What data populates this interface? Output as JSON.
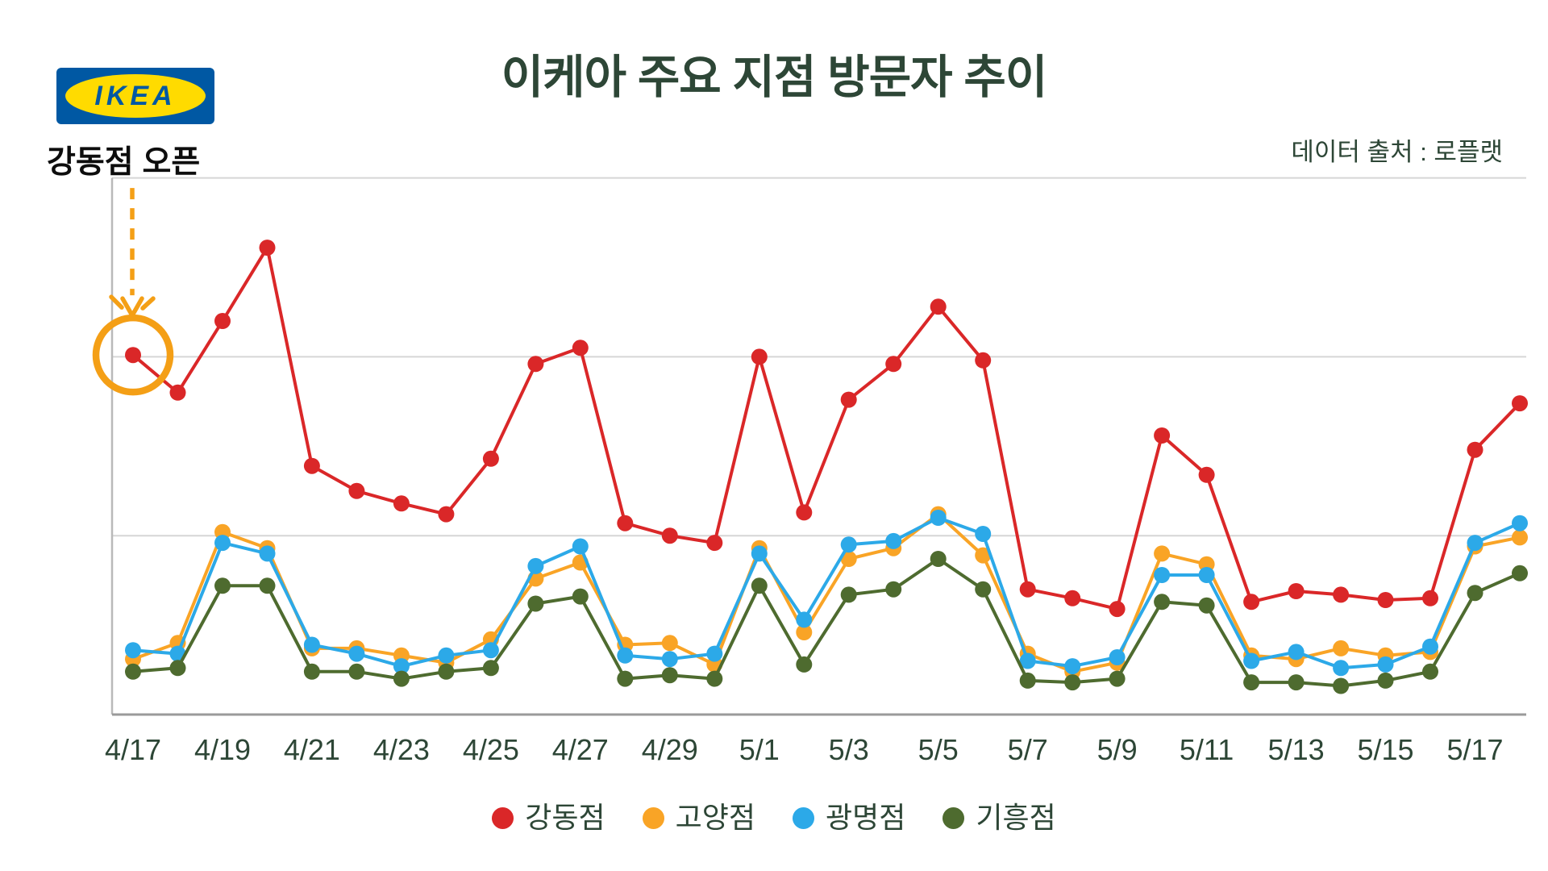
{
  "page": {
    "title": "이케아 주요 지점 방문자 추이",
    "source_note": "데이터 출처 : 로플랫",
    "logo_text": "IKEA",
    "annotation_label": "강동점 오픈"
  },
  "colors": {
    "background": "#ffffff",
    "title_text": "#2d4636",
    "axis_text": "#2d4636",
    "annotation": "#f49f16",
    "gridline": "#d6d6d6",
    "left_spine": "#b9b9b9",
    "bottom_axis": "#9a9a9a",
    "logo_blue": "#0058a3",
    "logo_yellow": "#ffdb00"
  },
  "chart_data": {
    "type": "line",
    "title": "이케아 주요 지점 방문자 추이",
    "source": "데이터 출처 : 로플랫",
    "x": [
      "4/17",
      "4/18",
      "4/19",
      "4/20",
      "4/21",
      "4/22",
      "4/23",
      "4/24",
      "4/25",
      "4/26",
      "4/27",
      "4/28",
      "4/29",
      "4/30",
      "5/1",
      "5/2",
      "5/3",
      "5/4",
      "5/5",
      "5/6",
      "5/7",
      "5/8",
      "5/9",
      "5/10",
      "5/11",
      "5/12",
      "5/13",
      "5/14",
      "5/15",
      "5/16",
      "5/17",
      "5/18"
    ],
    "x_tick_labels": [
      "4/17",
      "4/19",
      "4/21",
      "4/23",
      "4/25",
      "4/27",
      "4/29",
      "5/1",
      "5/3",
      "5/5",
      "5/7",
      "5/9",
      "5/11",
      "5/13",
      "5/15",
      "5/17"
    ],
    "y_axis": {
      "tick_labels_visible": false,
      "unit": "visitors (axis unlabeled; values expressed in gridline units, 1.0 = one gridline)",
      "gridline_values": [
        1,
        2,
        3
      ],
      "ylim": [
        0,
        3.05
      ]
    },
    "grid": "horizontal only",
    "legend_position": "bottom",
    "series": [
      {
        "name": "강동점",
        "color": "#da2728",
        "values": [
          2.01,
          1.8,
          2.2,
          2.61,
          1.39,
          1.25,
          1.18,
          1.12,
          1.43,
          1.96,
          2.05,
          1.07,
          1.0,
          0.96,
          2.0,
          1.13,
          1.76,
          1.96,
          2.28,
          1.98,
          0.7,
          0.65,
          0.59,
          1.56,
          1.34,
          0.63,
          0.69,
          0.67,
          0.64,
          0.65,
          1.48,
          1.74
        ]
      },
      {
        "name": "고양점",
        "color": "#f9a426",
        "values": [
          0.31,
          0.4,
          1.02,
          0.93,
          0.37,
          0.37,
          0.33,
          0.29,
          0.42,
          0.76,
          0.85,
          0.39,
          0.4,
          0.28,
          0.93,
          0.46,
          0.87,
          0.93,
          1.12,
          0.89,
          0.34,
          0.24,
          0.29,
          0.9,
          0.84,
          0.33,
          0.31,
          0.37,
          0.33,
          0.35,
          0.94,
          0.99
        ]
      },
      {
        "name": "광명점",
        "color": "#2ca9e8",
        "values": [
          0.36,
          0.34,
          0.96,
          0.9,
          0.39,
          0.34,
          0.27,
          0.33,
          0.36,
          0.83,
          0.94,
          0.33,
          0.31,
          0.34,
          0.9,
          0.53,
          0.95,
          0.97,
          1.1,
          1.01,
          0.3,
          0.27,
          0.32,
          0.78,
          0.78,
          0.3,
          0.35,
          0.26,
          0.28,
          0.38,
          0.96,
          1.07
        ]
      },
      {
        "name": "기흥점",
        "color": "#4e6b2f",
        "values": [
          0.24,
          0.26,
          0.72,
          0.72,
          0.24,
          0.24,
          0.2,
          0.24,
          0.26,
          0.62,
          0.66,
          0.2,
          0.22,
          0.2,
          0.72,
          0.28,
          0.67,
          0.7,
          0.87,
          0.7,
          0.19,
          0.18,
          0.2,
          0.63,
          0.61,
          0.18,
          0.18,
          0.16,
          0.19,
          0.24,
          0.68,
          0.79
        ]
      }
    ],
    "annotation": {
      "label": "강동점 오픈",
      "target": {
        "x": "4/17",
        "series": "강동점"
      },
      "style": "orange circle around point with dashed arrow pointing down from label"
    }
  }
}
